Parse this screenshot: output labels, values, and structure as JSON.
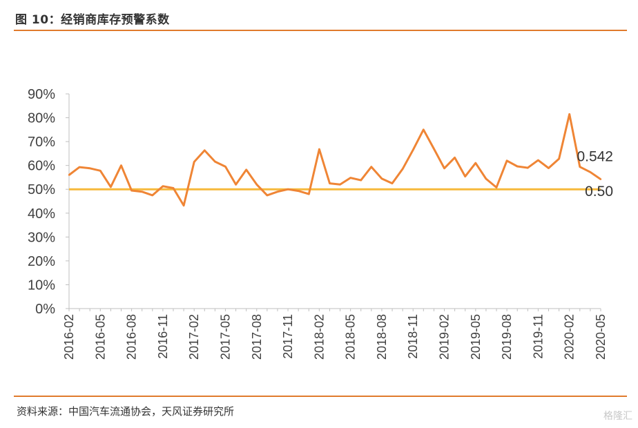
{
  "header": {
    "title": "图 10：经销商库存预警系数"
  },
  "footer": {
    "source": "资料来源：中国汽车流通协会，天风证券研究所",
    "watermark": "格隆汇"
  },
  "colors": {
    "accent": "#e07a2c",
    "line": "#ef8535",
    "threshold": "#f6b93b",
    "axis": "#bfbfbf"
  },
  "chart_data": {
    "type": "line",
    "title": "图 10：经销商库存预警系数",
    "xlabel": "",
    "ylabel": "",
    "ylim": [
      0,
      0.9
    ],
    "yticks": [
      "0%",
      "10%",
      "20%",
      "30%",
      "40%",
      "50%",
      "60%",
      "70%",
      "80%",
      "90%"
    ],
    "x": [
      "2016-02",
      "2016-03",
      "2016-04",
      "2016-05",
      "2016-06",
      "2016-07",
      "2016-08",
      "2016-09",
      "2016-10",
      "2016-11",
      "2016-12",
      "2017-01",
      "2017-02",
      "2017-03",
      "2017-04",
      "2017-05",
      "2017-06",
      "2017-07",
      "2017-08",
      "2017-09",
      "2017-10",
      "2017-11",
      "2017-12",
      "2018-01",
      "2018-02",
      "2018-03",
      "2018-04",
      "2018-05",
      "2018-06",
      "2018-07",
      "2018-08",
      "2018-09",
      "2018-10",
      "2018-11",
      "2018-12",
      "2019-01",
      "2019-02",
      "2019-03",
      "2019-04",
      "2019-05",
      "2019-06",
      "2019-07",
      "2019-08",
      "2019-09",
      "2019-10",
      "2019-11",
      "2019-12",
      "2020-01",
      "2020-02",
      "2020-03",
      "2020-04",
      "2020-05"
    ],
    "xticks": [
      "2016-02",
      "2016-05",
      "2016-08",
      "2016-11",
      "2017-02",
      "2017-05",
      "2017-08",
      "2017-11",
      "2018-02",
      "2018-05",
      "2018-08",
      "2018-11",
      "2019-02",
      "2019-05",
      "2019-08",
      "2019-11",
      "2020-02",
      "2020-05"
    ],
    "series": [
      {
        "name": "",
        "values": [
          0.56,
          0.593,
          0.588,
          0.578,
          0.51,
          0.6,
          0.495,
          0.49,
          0.475,
          0.513,
          0.505,
          0.432,
          0.615,
          0.663,
          0.616,
          0.595,
          0.52,
          0.582,
          0.52,
          0.475,
          0.49,
          0.5,
          0.493,
          0.48,
          0.668,
          0.525,
          0.52,
          0.548,
          0.538,
          0.594,
          0.545,
          0.525,
          0.585,
          0.665,
          0.75,
          0.67,
          0.588,
          0.633,
          0.554,
          0.61,
          0.544,
          0.508,
          0.62,
          0.596,
          0.59,
          0.622,
          0.589,
          0.628,
          0.815,
          0.594,
          0.572,
          0.542
        ]
      }
    ],
    "threshold": 0.5,
    "annotations": [
      {
        "text": "0.542",
        "x": "2020-05",
        "y": 0.542
      },
      {
        "text": "0.50",
        "x": "2020-05",
        "y": 0.5
      }
    ],
    "grid": false,
    "legend": "none"
  }
}
